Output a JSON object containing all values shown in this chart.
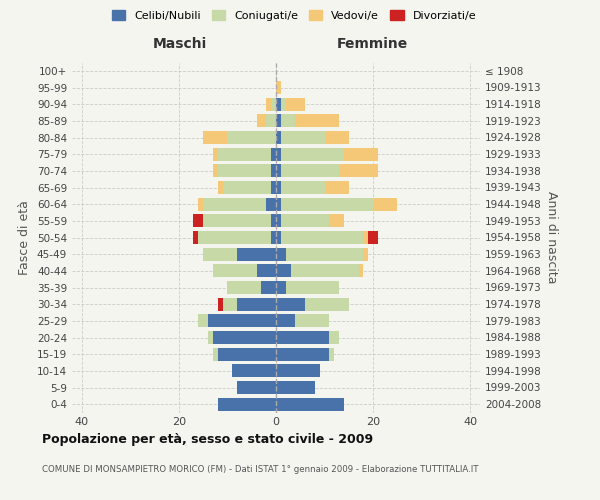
{
  "age_groups": [
    "0-4",
    "5-9",
    "10-14",
    "15-19",
    "20-24",
    "25-29",
    "30-34",
    "35-39",
    "40-44",
    "45-49",
    "50-54",
    "55-59",
    "60-64",
    "65-69",
    "70-74",
    "75-79",
    "80-84",
    "85-89",
    "90-94",
    "95-99",
    "100+"
  ],
  "birth_years": [
    "2004-2008",
    "1999-2003",
    "1994-1998",
    "1989-1993",
    "1984-1988",
    "1979-1983",
    "1974-1978",
    "1969-1973",
    "1964-1968",
    "1959-1963",
    "1954-1958",
    "1949-1953",
    "1944-1948",
    "1939-1943",
    "1934-1938",
    "1929-1933",
    "1924-1928",
    "1919-1923",
    "1914-1918",
    "1909-1913",
    "≤ 1908"
  ],
  "male": {
    "celibi": [
      12,
      8,
      9,
      12,
      13,
      14,
      8,
      3,
      4,
      8,
      1,
      1,
      2,
      1,
      1,
      1,
      0,
      0,
      0,
      0,
      0
    ],
    "coniugati": [
      0,
      0,
      0,
      1,
      1,
      2,
      3,
      7,
      9,
      7,
      15,
      14,
      13,
      10,
      11,
      11,
      10,
      2,
      1,
      0,
      0
    ],
    "vedovi": [
      0,
      0,
      0,
      0,
      0,
      0,
      0,
      0,
      0,
      0,
      0,
      0,
      1,
      1,
      1,
      1,
      5,
      2,
      1,
      0,
      0
    ],
    "divorziati": [
      0,
      0,
      0,
      0,
      0,
      0,
      1,
      0,
      0,
      0,
      1,
      2,
      0,
      0,
      0,
      0,
      0,
      0,
      0,
      0,
      0
    ]
  },
  "female": {
    "nubili": [
      14,
      8,
      9,
      11,
      11,
      4,
      6,
      2,
      3,
      2,
      1,
      1,
      1,
      1,
      1,
      1,
      1,
      1,
      1,
      0,
      0
    ],
    "coniugate": [
      0,
      0,
      0,
      1,
      2,
      7,
      9,
      11,
      14,
      16,
      17,
      10,
      19,
      9,
      12,
      13,
      9,
      3,
      1,
      0,
      0
    ],
    "vedove": [
      0,
      0,
      0,
      0,
      0,
      0,
      0,
      0,
      1,
      1,
      1,
      3,
      5,
      5,
      8,
      7,
      5,
      9,
      4,
      1,
      0
    ],
    "divorziate": [
      0,
      0,
      0,
      0,
      0,
      0,
      0,
      0,
      0,
      0,
      2,
      0,
      0,
      0,
      0,
      0,
      0,
      0,
      0,
      0,
      0
    ]
  },
  "colors": {
    "celibi_nubili": "#4a72aa",
    "coniugati": "#c8d9a8",
    "vedovi": "#f5c878",
    "divorziati": "#cc2222"
  },
  "xlim": 42,
  "title": "Popolazione per età, sesso e stato civile - 2009",
  "subtitle": "COMUNE DI MONSAMPIETRO MORICO (FM) - Dati ISTAT 1° gennaio 2009 - Elaborazione TUTTITALIA.IT",
  "ylabel_left": "Fasce di età",
  "ylabel_right": "Anni di nascita",
  "xlabel_left": "Maschi",
  "xlabel_right": "Femmine",
  "legend_labels": [
    "Celibi/Nubili",
    "Coniugati/e",
    "Vedovi/e",
    "Divorziati/e"
  ],
  "background_color": "#f5f5f0"
}
